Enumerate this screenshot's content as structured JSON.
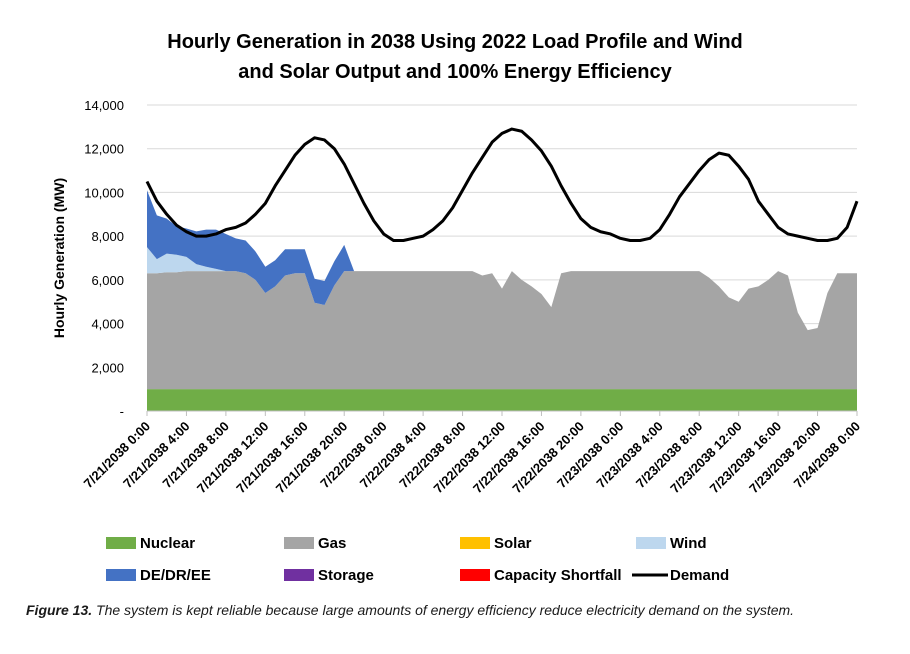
{
  "chart_data": {
    "type": "area",
    "stacked": true,
    "title": [
      "Hourly Generation in 2038 Using 2022 Load Profile and Wind",
      "and Solar Output and 100% Energy Efficiency"
    ],
    "ylabel": "Hourly Generation (MW)",
    "xlabel": "",
    "ylim": [
      0,
      14000
    ],
    "y_ticks": [
      0,
      2000,
      4000,
      6000,
      8000,
      10000,
      12000,
      14000
    ],
    "y_tick_labels": [
      "-",
      "2,000",
      "4,000",
      "6,000",
      "8,000",
      "10,000",
      "12,000",
      "14,000"
    ],
    "x_tick_labels": [
      "7/21/2038 0:00",
      "7/21/2038 4:00",
      "7/21/2038 8:00",
      "7/21/2038 12:00",
      "7/21/2038 16:00",
      "7/21/2038 20:00",
      "7/22/2038 0:00",
      "7/22/2038 4:00",
      "7/22/2038 8:00",
      "7/22/2038 12:00",
      "7/22/2038 16:00",
      "7/22/2038 20:00",
      "7/23/2038 0:00",
      "7/23/2038 4:00",
      "7/23/2038 8:00",
      "7/23/2038 12:00",
      "7/23/2038 16:00",
      "7/23/2038 20:00",
      "7/24/2038 0:00"
    ],
    "x_hours_note": "values below are hourly, 0 = 7/21/2038 0:00, 72 = 7/24/2038 0:00",
    "series": [
      {
        "name": "Nuclear",
        "color": "#70AD47",
        "values": [
          1000,
          1000,
          1000,
          1000,
          1000,
          1000,
          1000,
          1000,
          1000,
          1000,
          1000,
          1000,
          1000,
          1000,
          1000,
          1000,
          1000,
          1000,
          1000,
          1000,
          1000,
          1000,
          1000,
          1000,
          1000,
          1000,
          1000,
          1000,
          1000,
          1000,
          1000,
          1000,
          1000,
          1000,
          1000,
          1000,
          1000,
          1000,
          1000,
          1000,
          1000,
          1000,
          1000,
          1000,
          1000,
          1000,
          1000,
          1000,
          1000,
          1000,
          1000,
          1000,
          1000,
          1000,
          1000,
          1000,
          1000,
          1000,
          1000,
          1000,
          1000,
          1000,
          1000,
          1000,
          1000,
          1000,
          1000,
          1000,
          1000,
          1000,
          1000,
          1000,
          1000
        ]
      },
      {
        "name": "Gas",
        "color": "#A5A5A5",
        "values": [
          5300,
          5300,
          5350,
          5350,
          5400,
          5400,
          5400,
          5400,
          5400,
          5400,
          5300,
          5000,
          4400,
          4700,
          5200,
          5300,
          5300,
          3950,
          3850,
          4750,
          5400,
          5400,
          5400,
          5400,
          5400,
          5400,
          5400,
          5400,
          5400,
          5400,
          5400,
          5400,
          5400,
          5400,
          5200,
          5300,
          4600,
          5400,
          5000,
          4700,
          4350,
          3750,
          5300,
          5400,
          5400,
          5400,
          5400,
          5400,
          5400,
          5400,
          5400,
          5400,
          5400,
          5400,
          5400,
          5400,
          5400,
          5100,
          4700,
          4200,
          4000,
          4600,
          4700,
          5000,
          5400,
          5200,
          3500,
          2700,
          2800,
          4400,
          5300,
          5300,
          5300
        ]
      },
      {
        "name": "Solar",
        "color": "#FFC000",
        "values": [
          0,
          0,
          0,
          0,
          0,
          0,
          0,
          0,
          0,
          0,
          0,
          0,
          0,
          0,
          0,
          0,
          0,
          0,
          0,
          0,
          0,
          0,
          0,
          0,
          0,
          0,
          0,
          0,
          0,
          0,
          0,
          0,
          0,
          0,
          0,
          0,
          0,
          0,
          0,
          0,
          0,
          0,
          0,
          0,
          0,
          0,
          0,
          0,
          0,
          0,
          0,
          0,
          0,
          0,
          0,
          0,
          0,
          0,
          0,
          0,
          0,
          0,
          0,
          0,
          0,
          0,
          0,
          0,
          0,
          0,
          0,
          0,
          0
        ]
      },
      {
        "name": "Wind",
        "color": "#BDD7EE",
        "values": [
          1200,
          650,
          850,
          800,
          650,
          320,
          200,
          100,
          0,
          0,
          0,
          0,
          0,
          0,
          0,
          0,
          0,
          0,
          0,
          0,
          0,
          0,
          0,
          0,
          0,
          0,
          0,
          0,
          0,
          0,
          0,
          0,
          0,
          0,
          0,
          0,
          0,
          0,
          0,
          0,
          0,
          0,
          0,
          0,
          0,
          0,
          0,
          0,
          0,
          0,
          0,
          0,
          0,
          0,
          0,
          0,
          0,
          0,
          0,
          0,
          0,
          0,
          0,
          0,
          0,
          0,
          0,
          0,
          0,
          0,
          0,
          0,
          0
        ]
      },
      {
        "name": "DE/DR/EE",
        "color": "#4472C4",
        "values": [
          2600,
          2000,
          1600,
          1300,
          1300,
          1500,
          1700,
          1800,
          1700,
          1500,
          1500,
          1300,
          1200,
          1200,
          1200,
          1100,
          1100,
          1100,
          1100,
          1100,
          1200,
          0,
          0,
          0,
          0,
          0,
          0,
          0,
          0,
          0,
          0,
          0,
          0,
          0,
          0,
          0,
          0,
          0,
          0,
          0,
          0,
          0,
          0,
          0,
          0,
          0,
          0,
          0,
          0,
          0,
          0,
          0,
          0,
          0,
          0,
          0,
          0,
          0,
          0,
          0,
          0,
          0,
          0,
          0,
          0,
          0,
          0,
          0,
          0,
          0,
          0,
          0,
          0
        ]
      },
      {
        "name": "Storage",
        "color": "#7030A0",
        "values": [
          0,
          0,
          0,
          0,
          0,
          0,
          0,
          0,
          0,
          0,
          0,
          0,
          0,
          0,
          0,
          0,
          0,
          0,
          0,
          0,
          0,
          0,
          0,
          0,
          0,
          0,
          0,
          0,
          0,
          0,
          0,
          0,
          0,
          0,
          0,
          0,
          0,
          0,
          0,
          0,
          0,
          0,
          0,
          0,
          0,
          0,
          0,
          0,
          0,
          0,
          0,
          0,
          0,
          0,
          0,
          0,
          0,
          0,
          0,
          0,
          0,
          0,
          0,
          0,
          0,
          0,
          0,
          0,
          0,
          0,
          0,
          0,
          0
        ]
      },
      {
        "name": "Capacity Shortfall",
        "color": "#FF0000",
        "values": [
          0,
          0,
          0,
          0,
          0,
          0,
          0,
          0,
          0,
          0,
          0,
          0,
          0,
          0,
          0,
          0,
          0,
          0,
          0,
          0,
          0,
          0,
          0,
          0,
          0,
          0,
          0,
          0,
          0,
          0,
          0,
          0,
          0,
          0,
          0,
          0,
          0,
          0,
          0,
          0,
          0,
          0,
          0,
          0,
          0,
          0,
          0,
          0,
          0,
          0,
          0,
          0,
          0,
          0,
          0,
          0,
          0,
          0,
          0,
          0,
          0,
          0,
          0,
          0,
          0,
          0,
          0,
          0,
          0,
          0,
          0,
          0,
          0
        ]
      }
    ],
    "demand": {
      "name": "Demand",
      "color": "#000000",
      "values": [
        10500,
        9600,
        9000,
        8500,
        8200,
        8000,
        8000,
        8100,
        8300,
        8400,
        8600,
        9000,
        9500,
        10300,
        11000,
        11700,
        12200,
        12500,
        12400,
        12000,
        11300,
        10400,
        9500,
        8700,
        8100,
        7800,
        7800,
        7900,
        8000,
        8300,
        8700,
        9300,
        10100,
        10900,
        11600,
        12300,
        12700,
        12900,
        12800,
        12400,
        11900,
        11200,
        10300,
        9500,
        8800,
        8400,
        8200,
        8100,
        7900,
        7800,
        7800,
        7900,
        8300,
        9000,
        9800,
        10400,
        11000,
        11500,
        11800,
        11700,
        11200,
        10600,
        9600,
        9000,
        8400,
        8100,
        8000,
        7900,
        7800,
        7800,
        7900,
        8400,
        9600
      ]
    },
    "legend": {
      "placement": "bottom",
      "entries": [
        {
          "name": "Nuclear",
          "color": "#70AD47",
          "kind": "area"
        },
        {
          "name": "Gas",
          "color": "#A5A5A5",
          "kind": "area"
        },
        {
          "name": "Solar",
          "color": "#FFC000",
          "kind": "area"
        },
        {
          "name": "Wind",
          "color": "#BDD7EE",
          "kind": "area"
        },
        {
          "name": "DE/DR/EE",
          "color": "#4472C4",
          "kind": "area"
        },
        {
          "name": "Storage",
          "color": "#7030A0",
          "kind": "area"
        },
        {
          "name": "Capacity Shortfall",
          "color": "#FF0000",
          "kind": "area"
        },
        {
          "name": "Demand",
          "color": "#000000",
          "kind": "line"
        }
      ]
    },
    "grid": {
      "y_major": true,
      "x_major": false,
      "grid_color": "#d9d9d9"
    }
  },
  "caption": {
    "label": "Figure 13.",
    "text": " The system is kept reliable because large amounts of energy efficiency reduce electricity demand on the system."
  }
}
